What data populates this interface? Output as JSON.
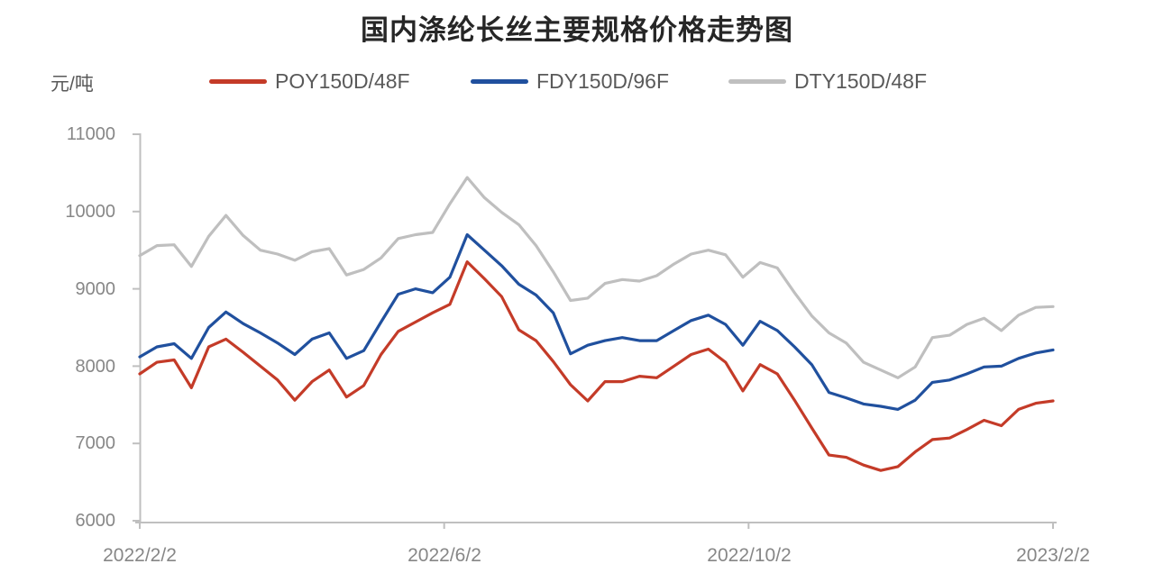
{
  "title": "国内涤纶长丝主要规格价格走势图",
  "colors": {
    "title_text": "#262626",
    "legend_text": "#595959",
    "tick_text": "#878787",
    "axis": "#BFBFBF"
  },
  "chart_data": {
    "type": "line",
    "title": "国内涤纶长丝主要规格价格走势图",
    "ylabel": "元/吨",
    "xlabel": "",
    "ylim": [
      6000,
      11000
    ],
    "grid": false,
    "legend_position": "top",
    "y_tick_labels": [
      "11000",
      "10000",
      "9000",
      "8000",
      "7000",
      "6000"
    ],
    "x_tick_labels": [
      "2022/2/2",
      "2022/6/2",
      "2022/10/2",
      "2023/2/2"
    ],
    "series": [
      {
        "name": "POY150D/48F",
        "color": "#C43B28",
        "values": [
          7900,
          8050,
          8080,
          7720,
          8250,
          8350,
          8180,
          8000,
          7820,
          7560,
          7800,
          7950,
          7600,
          7750,
          8150,
          8450,
          8570,
          8690,
          8800,
          9350,
          9130,
          8900,
          8470,
          8330,
          8060,
          7760,
          7550,
          7800,
          7800,
          7870,
          7850,
          8000,
          8150,
          8220,
          8050,
          7680,
          8020,
          7900,
          7560,
          7200,
          6850,
          6820,
          6720,
          6650,
          6700,
          6890,
          7050,
          7070,
          7180,
          7300,
          7230,
          7440,
          7520,
          7550
        ]
      },
      {
        "name": "FDY150D/96F",
        "color": "#20509E",
        "values": [
          8120,
          8250,
          8290,
          8100,
          8500,
          8700,
          8550,
          8430,
          8300,
          8150,
          8350,
          8430,
          8100,
          8200,
          8570,
          8930,
          9000,
          8950,
          9150,
          9700,
          9500,
          9300,
          9060,
          8920,
          8690,
          8160,
          8270,
          8330,
          8370,
          8330,
          8330,
          8460,
          8590,
          8660,
          8540,
          8270,
          8580,
          8460,
          8250,
          8020,
          7660,
          7590,
          7510,
          7480,
          7440,
          7560,
          7790,
          7820,
          7900,
          7990,
          8000,
          8100,
          8170,
          8210
        ]
      },
      {
        "name": "DTY150D/48F",
        "color": "#BFBFBF",
        "values": [
          9430,
          9560,
          9570,
          9290,
          9680,
          9950,
          9690,
          9500,
          9450,
          9370,
          9480,
          9520,
          9180,
          9250,
          9400,
          9650,
          9700,
          9730,
          10100,
          10440,
          10180,
          9990,
          9830,
          9560,
          9220,
          8850,
          8880,
          9070,
          9120,
          9100,
          9170,
          9320,
          9450,
          9500,
          9440,
          9150,
          9340,
          9270,
          8950,
          8650,
          8430,
          8300,
          8050,
          7950,
          7850,
          7990,
          8370,
          8400,
          8540,
          8620,
          8460,
          8660,
          8760,
          8770
        ]
      }
    ]
  }
}
